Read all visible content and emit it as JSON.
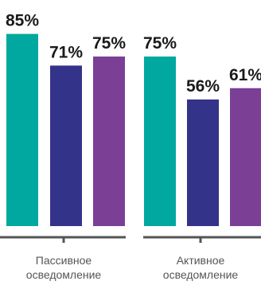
{
  "chart_data": {
    "type": "bar",
    "ylim": [
      0,
      100
    ],
    "grid": false,
    "legend": "none",
    "colors": [
      "#00a89f",
      "#33338a",
      "#7b3f96"
    ],
    "groups": [
      {
        "label_lines": [
          "Пассивное",
          "осведомление"
        ],
        "values": [
          85,
          71,
          75
        ],
        "labels": [
          "85%",
          "71%",
          "75%"
        ]
      },
      {
        "label_lines": [
          "Активное",
          "осведомление"
        ],
        "values": [
          75,
          56,
          61
        ],
        "labels": [
          "75%",
          "56%",
          "61%"
        ]
      }
    ]
  }
}
